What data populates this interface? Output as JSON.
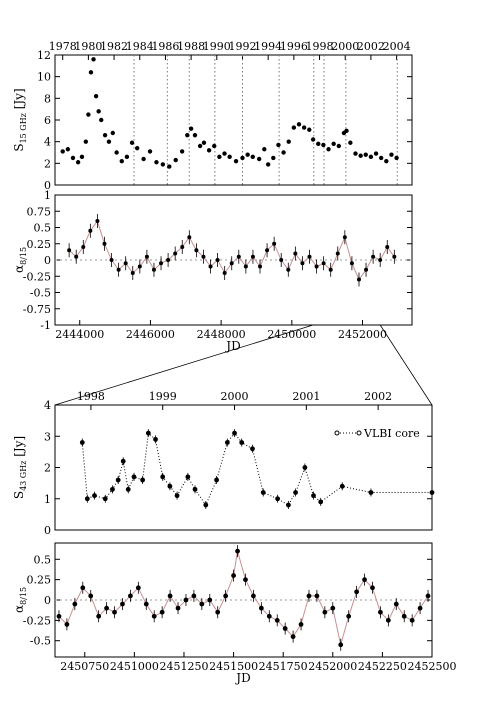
{
  "chart_data": [
    {
      "id": "p1",
      "type": "scatter",
      "ylabel": "S15 GHz [Jy]",
      "xlim": [
        1977.4,
        2005.2
      ],
      "ylim": [
        0,
        12
      ],
      "top_ticks": [
        "1978",
        "1980",
        "1982",
        "1984",
        "1986",
        "1988",
        "1990",
        "1992",
        "1994",
        "1996",
        "1998",
        "2000",
        "2002",
        "2004"
      ],
      "y_ticks": [
        "0",
        "2",
        "4",
        "6",
        "8",
        "10",
        "12"
      ],
      "dotted_lines": [
        1983.55,
        1986.15,
        1987.85,
        1989.85,
        1992.0,
        1994.85,
        1997.55,
        1998.35,
        2000.05,
        2004.05
      ],
      "series": [
        {
          "values": [
            [
              1978.0,
              3.1
            ],
            [
              1978.4,
              3.3
            ],
            [
              1978.8,
              2.5
            ],
            [
              1979.2,
              2.1
            ],
            [
              1979.5,
              2.6
            ],
            [
              1979.8,
              4.0
            ],
            [
              1980.0,
              6.5
            ],
            [
              1980.2,
              10.4
            ],
            [
              1980.4,
              11.6
            ],
            [
              1980.6,
              8.2
            ],
            [
              1980.8,
              6.8
            ],
            [
              1981.0,
              6.0
            ],
            [
              1981.3,
              4.6
            ],
            [
              1981.6,
              4.0
            ],
            [
              1981.9,
              4.8
            ],
            [
              1982.2,
              3.0
            ],
            [
              1982.6,
              2.2
            ],
            [
              1983.0,
              2.6
            ],
            [
              1983.4,
              3.9
            ],
            [
              1983.8,
              3.4
            ],
            [
              1984.3,
              2.4
            ],
            [
              1984.8,
              3.1
            ],
            [
              1985.3,
              2.1
            ],
            [
              1985.8,
              1.9
            ],
            [
              1986.3,
              1.7
            ],
            [
              1986.8,
              2.3
            ],
            [
              1987.3,
              3.1
            ],
            [
              1987.7,
              4.6
            ],
            [
              1988.0,
              5.2
            ],
            [
              1988.3,
              4.6
            ],
            [
              1988.7,
              3.6
            ],
            [
              1989.0,
              3.9
            ],
            [
              1989.4,
              3.2
            ],
            [
              1989.8,
              3.6
            ],
            [
              1990.2,
              2.6
            ],
            [
              1990.6,
              2.9
            ],
            [
              1991.0,
              2.6
            ],
            [
              1991.5,
              2.2
            ],
            [
              1992.0,
              2.5
            ],
            [
              1992.4,
              2.8
            ],
            [
              1992.8,
              2.6
            ],
            [
              1993.3,
              2.4
            ],
            [
              1993.7,
              3.3
            ],
            [
              1994.0,
              1.9
            ],
            [
              1994.4,
              2.5
            ],
            [
              1994.8,
              3.7
            ],
            [
              1995.2,
              3.0
            ],
            [
              1995.6,
              4.0
            ],
            [
              1996.0,
              5.3
            ],
            [
              1996.4,
              5.6
            ],
            [
              1996.8,
              5.3
            ],
            [
              1997.2,
              5.1
            ],
            [
              1997.5,
              4.2
            ],
            [
              1997.9,
              3.8
            ],
            [
              1998.3,
              3.7
            ],
            [
              1998.7,
              3.3
            ],
            [
              1999.1,
              3.8
            ],
            [
              1999.5,
              3.6
            ],
            [
              1999.9,
              4.8
            ],
            [
              2000.1,
              5.0
            ],
            [
              2000.4,
              3.9
            ],
            [
              2000.8,
              2.9
            ],
            [
              2001.2,
              2.7
            ],
            [
              2001.6,
              2.8
            ],
            [
              2002.0,
              2.6
            ],
            [
              2002.4,
              2.9
            ],
            [
              2002.8,
              2.5
            ],
            [
              2003.2,
              2.2
            ],
            [
              2003.6,
              2.8
            ],
            [
              2004.0,
              2.5
            ]
          ]
        }
      ]
    },
    {
      "id": "p2",
      "type": "scatter",
      "ylabel": "α8/15",
      "xlabel": "JD",
      "xlim": [
        2443300,
        2453400
      ],
      "ylim": [
        -1,
        1
      ],
      "x_ticks": [
        "2444000",
        "2446000",
        "2448000",
        "2450000",
        "2452000"
      ],
      "y_ticks": [
        "-1",
        "-0.75",
        "-0.5",
        "-0.25",
        "0",
        "0.25",
        "0.5",
        "0.75",
        "1"
      ],
      "series": [
        {
          "values": [
            [
              2443700,
              0.15
            ],
            [
              2443900,
              0.05
            ],
            [
              2444100,
              0.2
            ],
            [
              2444300,
              0.45
            ],
            [
              2444500,
              0.6
            ],
            [
              2444700,
              0.25
            ],
            [
              2444900,
              0.0
            ],
            [
              2445100,
              -0.15
            ],
            [
              2445300,
              -0.05
            ],
            [
              2445500,
              -0.2
            ],
            [
              2445700,
              -0.1
            ],
            [
              2445900,
              0.05
            ],
            [
              2446100,
              -0.15
            ],
            [
              2446300,
              -0.05
            ],
            [
              2446500,
              0.0
            ],
            [
              2446700,
              0.1
            ],
            [
              2446900,
              0.2
            ],
            [
              2447100,
              0.35
            ],
            [
              2447300,
              0.15
            ],
            [
              2447500,
              0.05
            ],
            [
              2447700,
              -0.1
            ],
            [
              2447900,
              0.0
            ],
            [
              2448100,
              -0.2
            ],
            [
              2448300,
              -0.05
            ],
            [
              2448500,
              0.05
            ],
            [
              2448700,
              -0.1
            ],
            [
              2448900,
              0.05
            ],
            [
              2449100,
              -0.1
            ],
            [
              2449300,
              0.15
            ],
            [
              2449500,
              0.25
            ],
            [
              2449700,
              0.0
            ],
            [
              2449900,
              -0.15
            ],
            [
              2450100,
              0.1
            ],
            [
              2450300,
              -0.05
            ],
            [
              2450500,
              0.05
            ],
            [
              2450700,
              -0.1
            ],
            [
              2450900,
              -0.05
            ],
            [
              2451100,
              -0.15
            ],
            [
              2451300,
              0.1
            ],
            [
              2451500,
              0.35
            ],
            [
              2451700,
              -0.05
            ],
            [
              2451900,
              -0.3
            ],
            [
              2452100,
              -0.15
            ],
            [
              2452300,
              0.05
            ],
            [
              2452500,
              0.0
            ],
            [
              2452700,
              0.2
            ],
            [
              2452900,
              0.05
            ]
          ]
        }
      ]
    },
    {
      "id": "p3",
      "type": "line",
      "ylabel": "S43 GHz [Jy]",
      "xlim": [
        1997.5,
        2002.75
      ],
      "ylim": [
        0,
        4
      ],
      "top_ticks": [
        "1998",
        "1999",
        "2000",
        "2001",
        "2002"
      ],
      "y_ticks": [
        "0",
        "1",
        "2",
        "3",
        "4"
      ],
      "legend": "VLBI core",
      "legend_position": "top-right",
      "series": [
        {
          "name": "VLBI core",
          "values": [
            [
              1997.88,
              2.8
            ],
            [
              1997.95,
              1.0
            ],
            [
              1998.05,
              1.1
            ],
            [
              1998.2,
              1.0
            ],
            [
              1998.3,
              1.3
            ],
            [
              1998.38,
              1.6
            ],
            [
              1998.45,
              2.2
            ],
            [
              1998.52,
              1.3
            ],
            [
              1998.6,
              1.7
            ],
            [
              1998.72,
              1.6
            ],
            [
              1998.8,
              3.1
            ],
            [
              1998.9,
              2.9
            ],
            [
              1999.0,
              1.7
            ],
            [
              1999.1,
              1.4
            ],
            [
              1999.2,
              1.1
            ],
            [
              1999.35,
              1.7
            ],
            [
              1999.45,
              1.3
            ],
            [
              1999.6,
              0.8
            ],
            [
              1999.75,
              1.6
            ],
            [
              1999.9,
              2.8
            ],
            [
              2000.0,
              3.1
            ],
            [
              2000.1,
              2.8
            ],
            [
              2000.25,
              2.6
            ],
            [
              2000.4,
              1.2
            ],
            [
              2000.6,
              1.0
            ],
            [
              2000.75,
              0.8
            ],
            [
              2000.85,
              1.2
            ],
            [
              2000.98,
              2.0
            ],
            [
              2001.1,
              1.1
            ],
            [
              2001.2,
              0.9
            ],
            [
              2001.5,
              1.4
            ],
            [
              2001.9,
              1.2
            ],
            [
              2002.75,
              1.2
            ]
          ]
        }
      ]
    },
    {
      "id": "p4",
      "type": "scatter",
      "ylabel": "α8/15",
      "xlabel": "JD",
      "xlim": [
        2450600,
        2452500
      ],
      "ylim": [
        -0.7,
        0.7
      ],
      "x_ticks": [
        "2450750",
        "2451000",
        "2451250",
        "2451500",
        "2451750",
        "2452000",
        "2452250",
        "2452500"
      ],
      "y_ticks": [
        "-0.5",
        "-0.25",
        "0",
        "0.25",
        "0.5"
      ],
      "series": [
        {
          "values": [
            [
              2450620,
              -0.2
            ],
            [
              2450660,
              -0.3
            ],
            [
              2450700,
              -0.05
            ],
            [
              2450740,
              0.15
            ],
            [
              2450780,
              0.05
            ],
            [
              2450820,
              -0.2
            ],
            [
              2450860,
              -0.1
            ],
            [
              2450900,
              -0.15
            ],
            [
              2450940,
              -0.05
            ],
            [
              2450980,
              0.05
            ],
            [
              2451020,
              0.15
            ],
            [
              2451060,
              -0.05
            ],
            [
              2451100,
              -0.2
            ],
            [
              2451140,
              -0.15
            ],
            [
              2451180,
              0.05
            ],
            [
              2451220,
              -0.1
            ],
            [
              2451260,
              0.0
            ],
            [
              2451300,
              0.05
            ],
            [
              2451340,
              -0.05
            ],
            [
              2451380,
              0.0
            ],
            [
              2451420,
              -0.15
            ],
            [
              2451460,
              0.05
            ],
            [
              2451500,
              0.3
            ],
            [
              2451520,
              0.6
            ],
            [
              2451560,
              0.25
            ],
            [
              2451600,
              0.05
            ],
            [
              2451640,
              -0.1
            ],
            [
              2451680,
              -0.2
            ],
            [
              2451720,
              -0.25
            ],
            [
              2451760,
              -0.35
            ],
            [
              2451800,
              -0.45
            ],
            [
              2451840,
              -0.3
            ],
            [
              2451880,
              0.05
            ],
            [
              2451920,
              0.05
            ],
            [
              2451960,
              -0.15
            ],
            [
              2452000,
              -0.1
            ],
            [
              2452040,
              -0.55
            ],
            [
              2452080,
              -0.2
            ],
            [
              2452120,
              0.1
            ],
            [
              2452160,
              0.25
            ],
            [
              2452200,
              0.15
            ],
            [
              2452240,
              -0.15
            ],
            [
              2452280,
              -0.25
            ],
            [
              2452320,
              -0.05
            ],
            [
              2452360,
              -0.2
            ],
            [
              2452400,
              -0.25
            ],
            [
              2452440,
              -0.1
            ],
            [
              2452480,
              0.05
            ]
          ]
        }
      ]
    }
  ]
}
